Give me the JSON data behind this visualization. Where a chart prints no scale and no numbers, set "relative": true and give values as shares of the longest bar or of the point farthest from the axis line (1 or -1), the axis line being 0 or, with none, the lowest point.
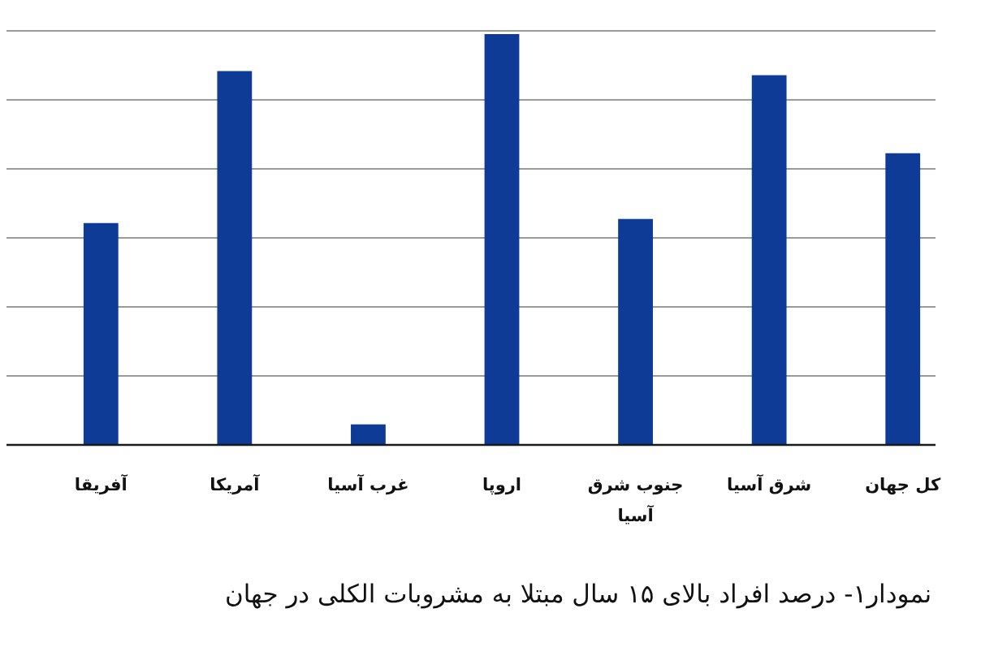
{
  "chart_data": {
    "type": "bar",
    "title": "نمودار۱- درصد افراد بالای ۱۵ سال مبتلا به مشروبات الکلی در جهان",
    "categories": [
      "آفریقا",
      "آمریکا",
      "غرب آسیا",
      "اروپا",
      "جنوب شرق آسیا",
      "شرق آسیا",
      "کل جهان"
    ],
    "values": [
      0.54,
      0.91,
      0.05,
      1,
      0.55,
      0.9,
      0.71
    ],
    "color": "#0d3b96",
    "relative": true,
    "grid": "y"
  }
}
